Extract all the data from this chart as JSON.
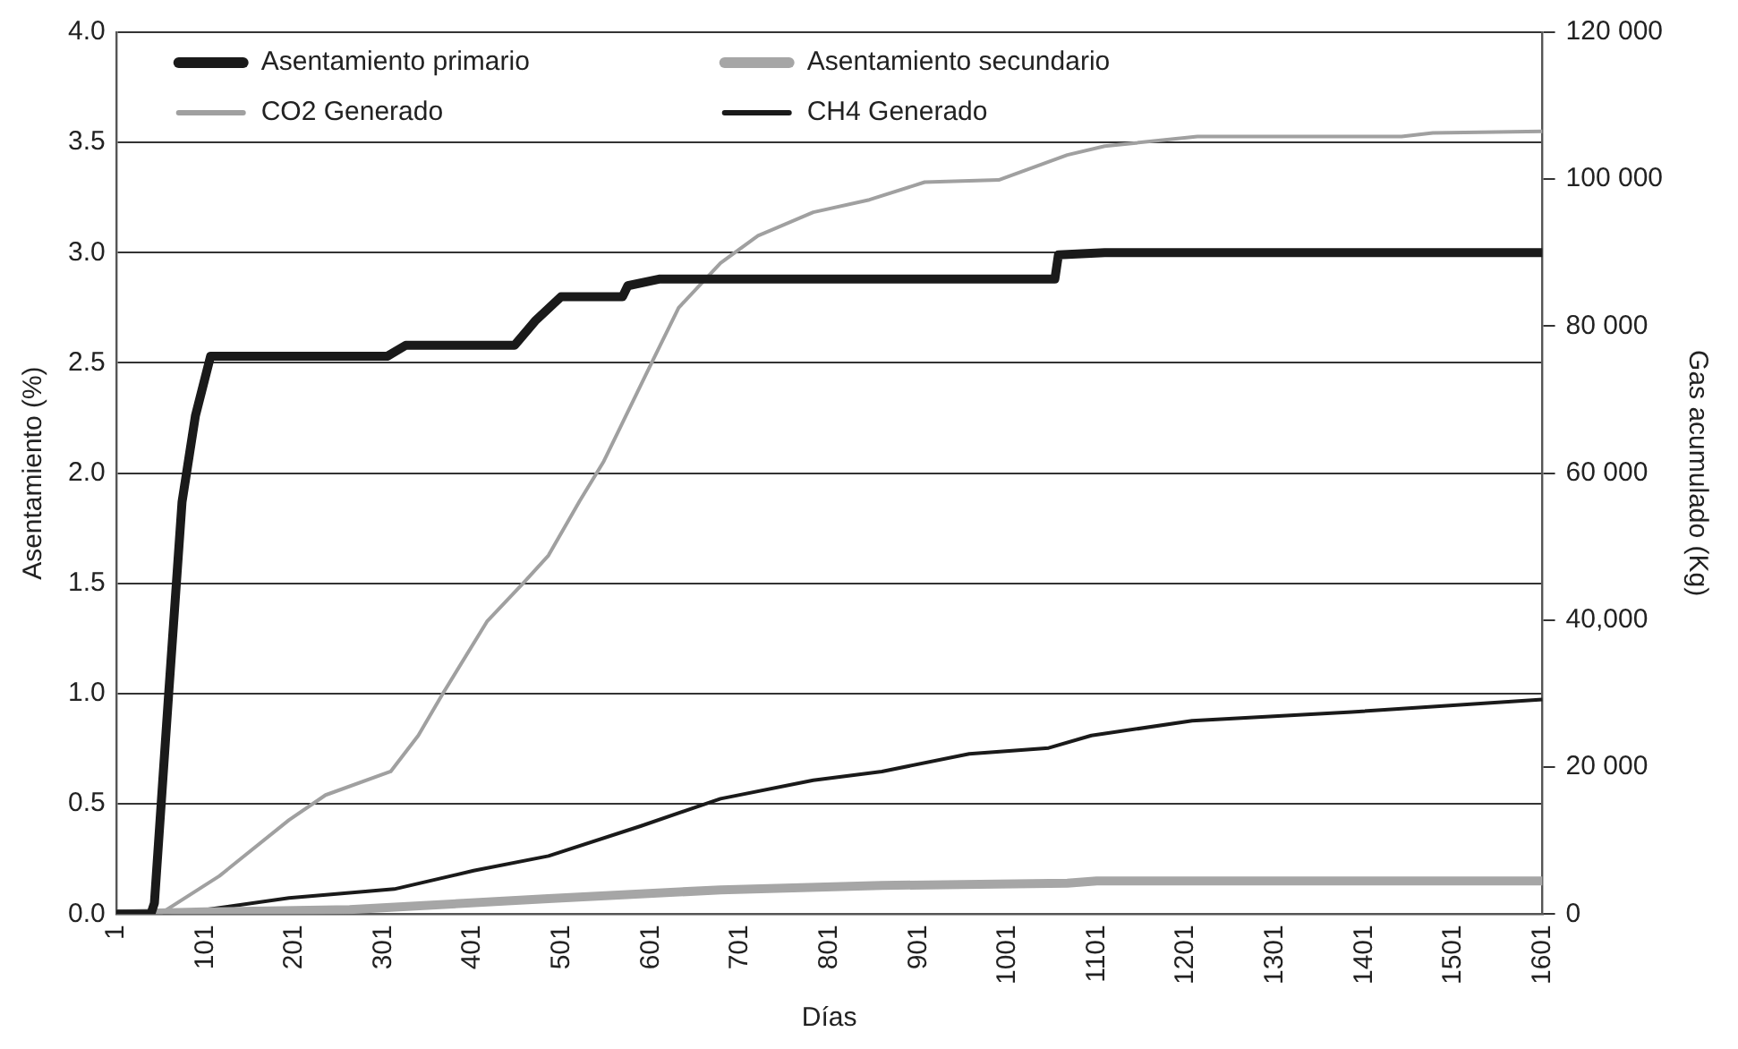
{
  "chart_data": {
    "type": "line",
    "xlabel": "Días",
    "ylabel": "Asentamiento (%)",
    "y2label": "Gas acumulado (Kg)",
    "xlim": [
      1,
      1601
    ],
    "xticks": [
      1,
      101,
      201,
      301,
      401,
      501,
      601,
      701,
      801,
      901,
      1001,
      1101,
      1201,
      1301,
      1401,
      1501,
      1601
    ],
    "ylim": [
      0,
      4
    ],
    "yticks": [
      {
        "value": 0,
        "label": "0.0"
      },
      {
        "value": 0.5,
        "label": "0.5"
      },
      {
        "value": 1,
        "label": "1.0"
      },
      {
        "value": 1.5,
        "label": "1.5"
      },
      {
        "value": 2,
        "label": "2.0"
      },
      {
        "value": 2.5,
        "label": "2.5"
      },
      {
        "value": 3,
        "label": "3.0"
      },
      {
        "value": 3.5,
        "label": "3.5"
      },
      {
        "value": 4,
        "label": "4.0"
      }
    ],
    "y2lim": [
      0,
      120000
    ],
    "y2ticks": [
      0,
      {
        "value": 20000,
        "label": "20 000"
      },
      {
        "value": 40000,
        "label": "40,000"
      },
      {
        "value": 60000,
        "label": "60 000"
      },
      {
        "value": 80000,
        "label": "80 000"
      },
      {
        "value": 100000,
        "label": "100 000"
      },
      {
        "value": 120000,
        "label": "120 000"
      }
    ],
    "grid": "y",
    "legend": "top",
    "marker": "none",
    "line_style": "solid",
    "series": [
      {
        "name": "Asentamiento primario",
        "color": "#1a1a1a",
        "x": [
          1,
          40,
          44,
          60,
          75,
          90,
          107,
          305,
          326,
          448,
          471,
          500,
          569,
          575,
          610,
          1054,
          1058,
          1110,
          1601
        ],
        "values": [
          0,
          0,
          0.05,
          1.0,
          1.87,
          2.26,
          2.53,
          2.53,
          2.58,
          2.58,
          2.69,
          2.8,
          2.8,
          2.85,
          2.88,
          2.88,
          2.99,
          3.0,
          3.0
        ]
      },
      {
        "name": "Asentamiento secundario",
        "color": "#a6a6a6",
        "x": [
          1,
          101,
          263,
          486,
          679,
          860,
          1068,
          1101,
          1601
        ],
        "values": [
          0,
          0.01,
          0.02,
          0.07,
          0.11,
          0.13,
          0.14,
          0.15,
          0.15
        ]
      },
      {
        "name": "CO2 Generado",
        "color": "#a0a0a0",
        "axis": "y2",
        "x": [
          1,
          50,
          117,
          195,
          236,
          309,
          340,
          367,
          417,
          459,
          486,
          521,
          548,
          600,
          632,
          679,
          721,
          783,
          846,
          908,
          991,
          1068,
          1110,
          1214,
          1443,
          1478,
          1601
        ],
        "values": [
          0,
          0,
          5200,
          12800,
          16200,
          19400,
          24300,
          29900,
          39800,
          45200,
          48800,
          56200,
          61600,
          74600,
          82500,
          88600,
          92300,
          95500,
          97200,
          99600,
          99900,
          103300,
          104500,
          105800,
          105800,
          106300,
          106500
        ]
      },
      {
        "name": "CH4 Generado",
        "color": "#1a1a1a",
        "axis": "y2",
        "x": [
          1,
          84,
          195,
          313,
          402,
          486,
          590,
          679,
          783,
          860,
          958,
          1047,
          1095,
          1208,
          1387,
          1601
        ],
        "values": [
          0,
          300,
          2200,
          3400,
          5900,
          7900,
          12000,
          15700,
          18200,
          19400,
          21800,
          22600,
          24300,
          26300,
          27500,
          29200
        ]
      }
    ]
  }
}
